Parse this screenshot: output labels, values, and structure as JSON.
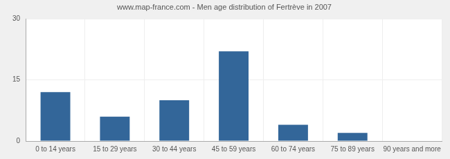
{
  "chart_data": {
    "type": "bar",
    "title": "www.map-france.com - Men age distribution of Fertrève in 2007",
    "categories": [
      "0 to 14 years",
      "15 to 29 years",
      "30 to 44 years",
      "45 to 59 years",
      "60 to 74 years",
      "75 to 89 years",
      "90 years and more"
    ],
    "values": [
      12,
      6,
      10,
      22,
      4,
      2,
      0
    ],
    "color": "#336699",
    "ylim": [
      0,
      30
    ],
    "yticks": [
      0,
      15,
      30
    ],
    "grid": true
  }
}
